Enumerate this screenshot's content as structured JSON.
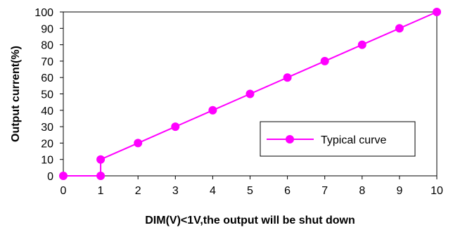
{
  "chart_data": {
    "type": "line",
    "title": "",
    "xlabel": "DIM(V)<1V,the output will be shut down",
    "ylabel": "Output current(%)",
    "xlim": [
      0,
      10
    ],
    "ylim": [
      0,
      100
    ],
    "x_ticks": [
      "0",
      "1",
      "2",
      "3",
      "4",
      "5",
      "6",
      "7",
      "8",
      "9",
      "10"
    ],
    "y_ticks": [
      "0",
      "10",
      "20",
      "30",
      "40",
      "50",
      "60",
      "70",
      "80",
      "90",
      "100"
    ],
    "grid": false,
    "legend_position": "bottom-right",
    "series": [
      {
        "name": "Typical curve",
        "color": "#ff00ff",
        "marker": "circle",
        "points": [
          {
            "x": 0,
            "y": 0
          },
          {
            "x": 1,
            "y": 0
          },
          {
            "x": 1,
            "y": 10
          },
          {
            "x": 2,
            "y": 20
          },
          {
            "x": 3,
            "y": 30
          },
          {
            "x": 4,
            "y": 40
          },
          {
            "x": 5,
            "y": 50
          },
          {
            "x": 6,
            "y": 60
          },
          {
            "x": 7,
            "y": 70
          },
          {
            "x": 8,
            "y": 80
          },
          {
            "x": 9,
            "y": 90
          },
          {
            "x": 10,
            "y": 100
          }
        ]
      }
    ]
  }
}
